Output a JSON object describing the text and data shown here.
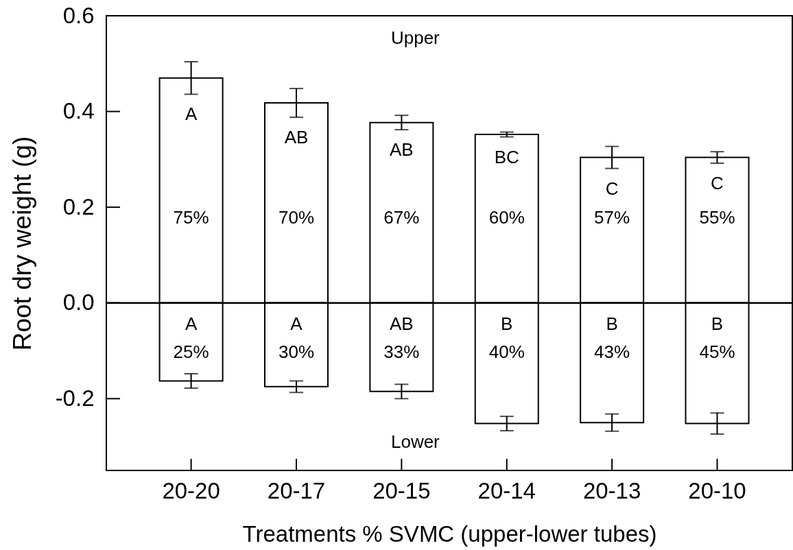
{
  "chart_data": {
    "type": "bar",
    "xlabel": "Treatments % SVMC (upper-lower tubes)",
    "ylabel": "Root dry weight (g)",
    "categories": [
      "20-20",
      "20-17",
      "20-15",
      "20-14",
      "20-13",
      "20-10"
    ],
    "stacked": true,
    "legend": false,
    "series": [
      {
        "color": "#ffffff",
        "values": [
          0.47,
          0.418,
          0.377,
          0.352,
          0.304,
          0.304
        ],
        "errors": [
          0.034,
          0.03,
          0.015,
          0.005,
          0.023,
          0.012
        ]
      },
      {
        "color": "#ffffff",
        "values": [
          -0.163,
          -0.175,
          -0.185,
          -0.252,
          -0.25,
          -0.252
        ],
        "errors": [
          0.015,
          0.012,
          0.015,
          0.015,
          0.018,
          0.022
        ]
      }
    ],
    "ylim": [
      -0.35,
      0.6
    ],
    "yticks": [
      -0.2,
      {
        "value": 0,
        "label": "0.0"
      },
      0.2,
      0.4,
      0.6
    ],
    "ref_lines": [
      {
        "axis": "y",
        "value": 0,
        "color": "#000000"
      }
    ],
    "annotations": [
      "Upper",
      "A",
      "AB",
      "AB",
      "BC",
      "C",
      "C",
      "75%",
      "70%",
      "67%",
      "60%",
      "57%",
      "55%",
      "A",
      "A",
      "AB",
      "B",
      "B",
      "B",
      "25%",
      "30%",
      "33%",
      "40%",
      "43%",
      "45%",
      "Lower"
    ]
  }
}
